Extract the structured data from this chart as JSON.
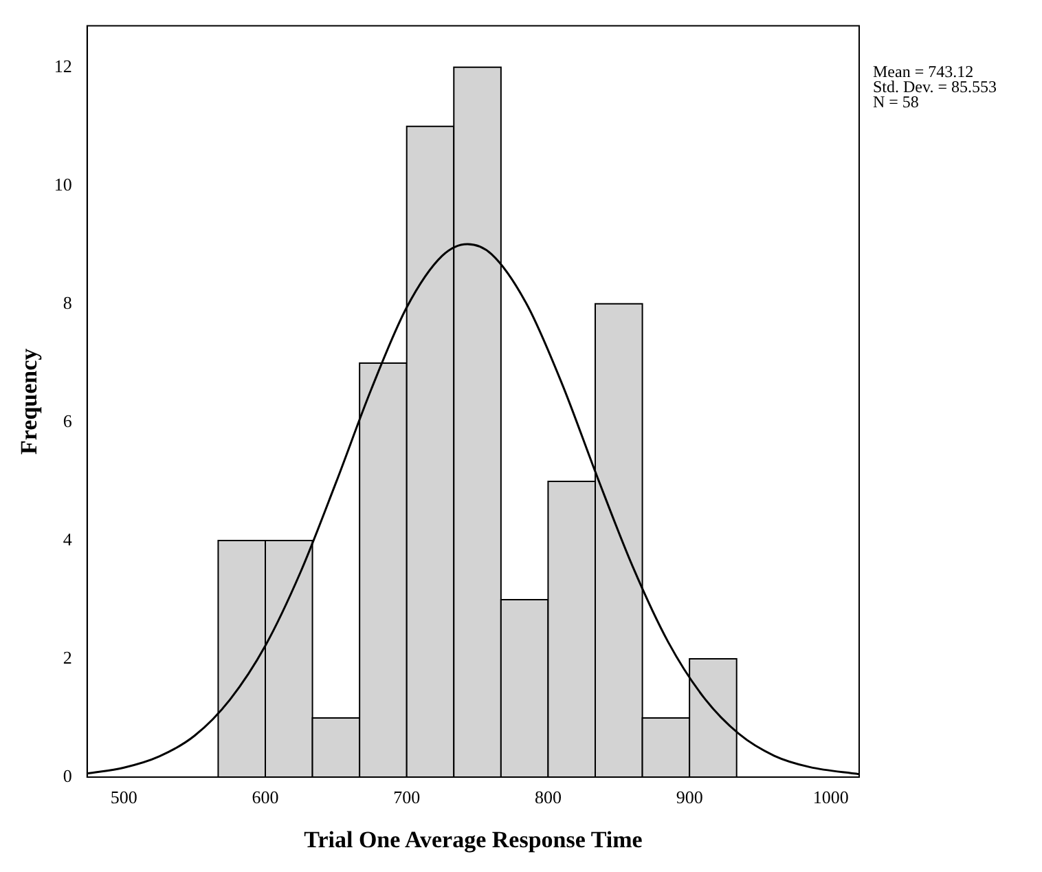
{
  "chart_data": {
    "type": "histogram",
    "xlabel": "Trial One Average Response Time",
    "ylabel": "Frequency",
    "bins": [
      566.67,
      600,
      633.33,
      666.67,
      700,
      733.33,
      766.67,
      800,
      833.33,
      866.67,
      900,
      933.33
    ],
    "values": [
      4,
      4,
      1,
      7,
      11,
      12,
      3,
      5,
      8,
      1,
      2
    ],
    "color": "#d3d3d3",
    "series": [
      {
        "type": "line",
        "color": "#000000",
        "x": [
          474,
          500,
          525,
          550,
          575,
          600,
          625,
          650,
          675,
          700,
          725,
          743,
          760,
          785,
          810,
          835,
          860,
          885,
          910,
          935,
          960,
          985,
          1020
        ],
        "values": [
          0.06,
          0.16,
          0.35,
          0.7,
          1.31,
          2.22,
          3.47,
          4.98,
          6.56,
          7.94,
          8.81,
          9.01,
          8.84,
          7.99,
          6.64,
          5.06,
          3.55,
          2.28,
          1.35,
          0.73,
          0.36,
          0.17,
          0.05
        ]
      }
    ],
    "xlim": [
      474,
      1020
    ],
    "xticks": [
      500,
      600,
      700,
      800,
      900,
      1000
    ],
    "ylim": [
      0,
      12.7
    ],
    "yticks": [
      0,
      2,
      4,
      6,
      8,
      10,
      12
    ],
    "grid": false,
    "legend": false,
    "annotations": [
      "Mean = 743.12",
      "Std. Dev. = 85.553",
      "N = 58"
    ]
  }
}
